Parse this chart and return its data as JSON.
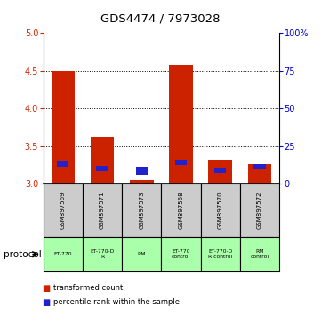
{
  "title": "GDS4474 / 7973028",
  "samples": [
    "GSM897569",
    "GSM897571",
    "GSM897573",
    "GSM897568",
    "GSM897570",
    "GSM897572"
  ],
  "red_values": [
    4.5,
    3.62,
    3.05,
    4.58,
    3.32,
    3.26
  ],
  "blue_values": [
    3.22,
    3.17,
    3.12,
    3.25,
    3.14,
    3.19
  ],
  "blue_heights": [
    0.07,
    0.07,
    0.1,
    0.07,
    0.07,
    0.07
  ],
  "ylim_left": [
    3.0,
    5.0
  ],
  "yticks_left": [
    3.0,
    3.5,
    4.0,
    4.5,
    5.0
  ],
  "yticks_right": [
    0,
    25,
    50,
    75,
    100
  ],
  "ylim_right": [
    0,
    100
  ],
  "protocols": [
    "ET-770",
    "ET-770-D\nR",
    "RM",
    "ET-770\ncontrol",
    "ET-770-D\nR control",
    "RM\ncontrol"
  ],
  "protocol_label": "protocol",
  "legend_items": [
    {
      "label": "transformed count",
      "color": "#cc2200"
    },
    {
      "label": "percentile rank within the sample",
      "color": "#0000cc"
    }
  ],
  "bar_width": 0.6,
  "left_color": "#cc2200",
  "blue_color": "#2222cc",
  "protocol_bg": "#aaffaa",
  "sample_bg": "#cccccc",
  "bar_bottom": 3.0,
  "grid_yticks": [
    3.5,
    4.0,
    4.5
  ]
}
